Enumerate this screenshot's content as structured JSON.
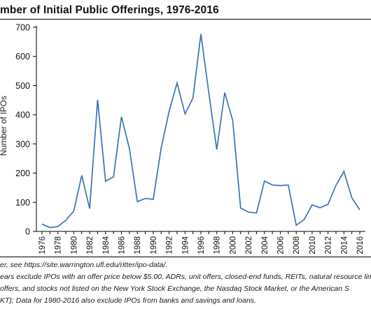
{
  "header": {
    "title": "mber of Initial Public Offerings, 1976-2016"
  },
  "chart_data": {
    "type": "line",
    "title": "mber of Initial Public Offerings, 1976-2016",
    "ylabel": "Number of IPOs",
    "xlabel": "",
    "ylim": [
      0,
      700
    ],
    "yticks": [
      0,
      100,
      200,
      300,
      400,
      500,
      600,
      700
    ],
    "xticks": [
      "1976",
      "1978",
      "1980",
      "1982",
      "1984",
      "1986",
      "1988",
      "1990",
      "1992",
      "1994",
      "1996",
      "1998",
      "2000",
      "2002",
      "2004",
      "2006",
      "2008",
      "2010",
      "2012",
      "2014",
      "2016"
    ],
    "grid": false,
    "line_color": "#3b73b9",
    "x": [
      1976,
      1977,
      1978,
      1979,
      1980,
      1981,
      1982,
      1983,
      1984,
      1985,
      1986,
      1987,
      1988,
      1989,
      1990,
      1991,
      1992,
      1993,
      1994,
      1995,
      1996,
      1997,
      1998,
      1999,
      2000,
      2001,
      2002,
      2003,
      2004,
      2005,
      2006,
      2007,
      2008,
      2009,
      2010,
      2011,
      2012,
      2013,
      2014,
      2015,
      2016
    ],
    "series": [
      {
        "values": [
          25,
          13,
          17,
          38,
          70,
          192,
          78,
          451,
          172,
          187,
          393,
          285,
          102,
          113,
          110,
          286,
          412,
          509,
          403,
          457,
          677,
          474,
          281,
          476,
          381,
          80,
          66,
          63,
          173,
          159,
          157,
          159,
          21,
          41,
          91,
          81,
          93,
          158,
          206,
          115,
          74
        ]
      }
    ]
  },
  "notes": {
    "line1": "er, see https://site.warrington.ufl.edu/ritter/ipo-data/.",
    "line2": "ears exclude IPOs with an offer price below $5.00, ADRs, unit offers, closed-end funds, REITs, natural resource limi",
    "line3": "offers, and stocks not listed on the New York Stock Exchange, the Nasdaq Stock Market, or the American S",
    "line4": "KT); Data for 1980-2016 also exclude IPOs from banks and savings and loans."
  }
}
